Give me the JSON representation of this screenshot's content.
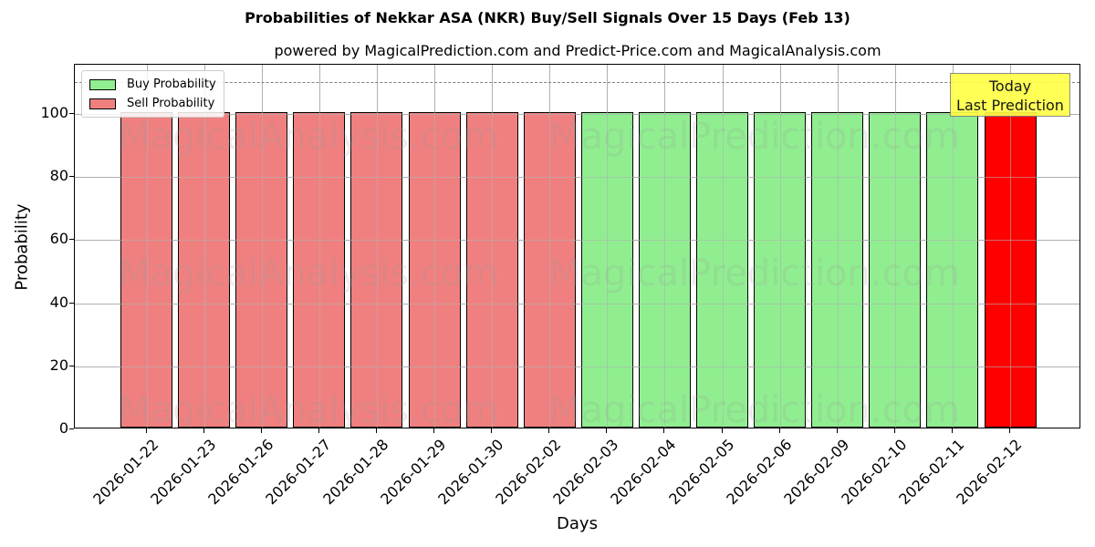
{
  "chart_data": {
    "type": "bar",
    "title": "Probabilities of Nekkar ASA (NKR) Buy/Sell Signals Over 15 Days (Feb 13)",
    "subtitle": "powered by MagicalPrediction.com and Predict-Price.com and MagicalAnalysis.com",
    "xlabel": "Days",
    "ylabel": "Probability",
    "ylim": [
      0,
      115
    ],
    "yticks": [
      0,
      20,
      40,
      60,
      80,
      100
    ],
    "grid": true,
    "legend_position": "upper left",
    "categories": [
      "2026-01-22",
      "2026-01-23",
      "2026-01-26",
      "2026-01-27",
      "2026-01-28",
      "2026-01-29",
      "2026-01-30",
      "2026-02-02",
      "2026-02-03",
      "2026-02-04",
      "2026-02-05",
      "2026-02-06",
      "2026-02-09",
      "2026-02-10",
      "2026-02-11",
      "2026-02-12"
    ],
    "series": [
      {
        "name": "Buy Probability",
        "color": "#90ee90",
        "values": [
          0,
          0,
          0,
          0,
          0,
          0,
          0,
          0,
          100,
          100,
          100,
          100,
          100,
          100,
          100,
          0
        ]
      },
      {
        "name": "Sell Probability",
        "color": "#f08080",
        "values": [
          100,
          100,
          100,
          100,
          100,
          100,
          100,
          100,
          0,
          0,
          0,
          0,
          0,
          0,
          0,
          100
        ]
      }
    ],
    "bar_colors": [
      "#f08080",
      "#f08080",
      "#f08080",
      "#f08080",
      "#f08080",
      "#f08080",
      "#f08080",
      "#f08080",
      "#90ee90",
      "#90ee90",
      "#90ee90",
      "#90ee90",
      "#90ee90",
      "#90ee90",
      "#90ee90",
      "#ff0000"
    ],
    "bar_values": [
      100,
      100,
      100,
      100,
      100,
      100,
      100,
      100,
      100,
      100,
      100,
      100,
      100,
      100,
      100,
      100
    ],
    "reference_line": {
      "y": 110,
      "style": "dashed",
      "color": "#808080"
    },
    "annotation": {
      "text_line1": "Today",
      "text_line2": "Last Prediction",
      "background": "#ffff44",
      "x_category": "2026-02-12"
    },
    "watermarks": [
      "MagicalAnalysis.com",
      "MagicalPrediction.com"
    ]
  },
  "legend": {
    "buy_label": "Buy Probability",
    "sell_label": "Sell Probability"
  }
}
